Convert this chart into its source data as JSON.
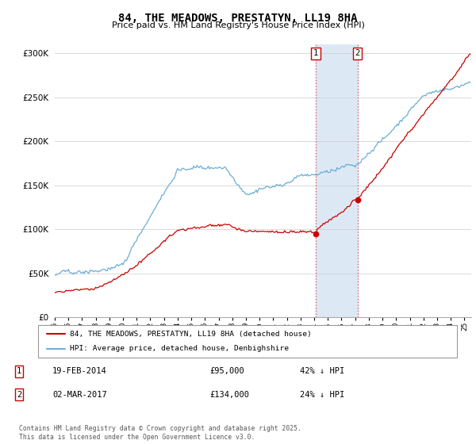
{
  "title": "84, THE MEADOWS, PRESTATYN, LL19 8HA",
  "subtitle": "Price paid vs. HM Land Registry's House Price Index (HPI)",
  "legend_entry1": "84, THE MEADOWS, PRESTATYN, LL19 8HA (detached house)",
  "legend_entry2": "HPI: Average price, detached house, Denbighshire",
  "transaction1_date": "19-FEB-2014",
  "transaction1_price": "£95,000",
  "transaction1_hpi": "42% ↓ HPI",
  "transaction2_date": "02-MAR-2017",
  "transaction2_price": "£134,000",
  "transaction2_hpi": "24% ↓ HPI",
  "footnote": "Contains HM Land Registry data © Crown copyright and database right 2025.\nThis data is licensed under the Open Government Licence v3.0.",
  "hpi_color": "#6baed6",
  "paid_color": "#cc0000",
  "highlight_color": "#dce9f5",
  "ylim": [
    0,
    310000
  ],
  "yticks": [
    0,
    50000,
    100000,
    150000,
    200000,
    250000,
    300000
  ],
  "transaction1_year": 2014.12,
  "transaction2_year": 2017.17,
  "xmin": 1995.0,
  "xmax": 2025.5
}
